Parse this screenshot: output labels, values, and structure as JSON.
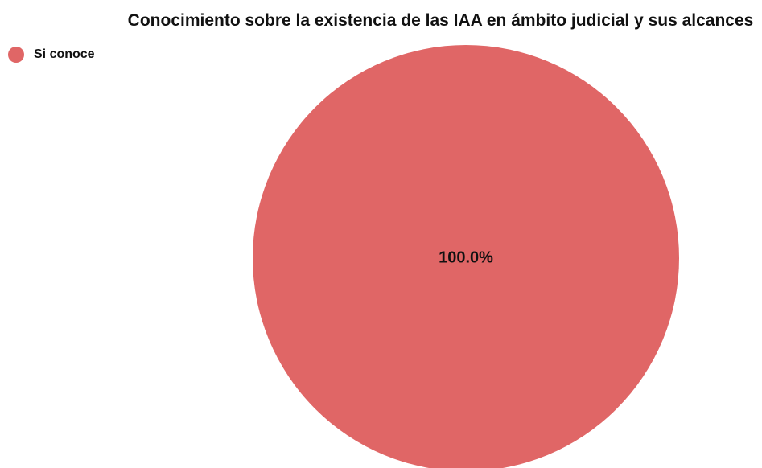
{
  "chart_data": {
    "type": "pie",
    "title": "Conocimiento sobre la existencia de las IAA en ámbito judicial y sus alcances",
    "legend_position": "top-left",
    "slices": [
      {
        "label": "Si conoce",
        "value": 100.0,
        "display": "100.0%",
        "color": "#e06666"
      }
    ]
  }
}
